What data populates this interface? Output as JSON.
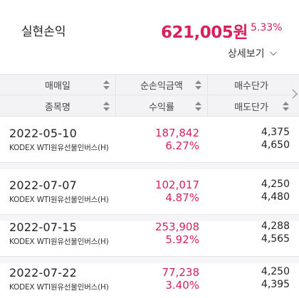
{
  "summary": {
    "label": "실현손익",
    "amount": "621,005원",
    "rate": "5.33%",
    "detail_button": "상세보기"
  },
  "table": {
    "header_row1": [
      "매매일",
      "순손익금액",
      "매수단가"
    ],
    "header_row2": [
      "종목명",
      "수익률",
      "매도단가"
    ],
    "rows": [
      {
        "date": "2022-05-10",
        "name": "KODEX WTI원유선물인버스(H)",
        "profit": "187,842",
        "rate": "6.27%",
        "buy_price": "4,375",
        "sell_price": "4,650"
      },
      {
        "date": "2022-07-07",
        "name": "KODEX WTI원유선물인버스(H)",
        "profit": "102,017",
        "rate": "4.87%",
        "buy_price": "4,250",
        "sell_price": "4,480"
      },
      {
        "date": "2022-07-15",
        "name": "KODEX WTI원유선물인버스(H)",
        "profit": "253,908",
        "rate": "5.92%",
        "buy_price": "4,288",
        "sell_price": "4,565"
      },
      {
        "date": "2022-07-22",
        "name": "KODEX WTI원유선물인버스(H)",
        "profit": "77,238",
        "rate": "3.40%",
        "buy_price": "4,250",
        "sell_price": "4,395"
      }
    ]
  },
  "colors": {
    "accent": "#d8205c",
    "header_bg": "#f3f3f5",
    "divider": "#e4e4e6"
  },
  "icons": {
    "detail": "chevron-down-icon",
    "sort": "sort-icon",
    "scroll": "chevron-right-icon"
  }
}
